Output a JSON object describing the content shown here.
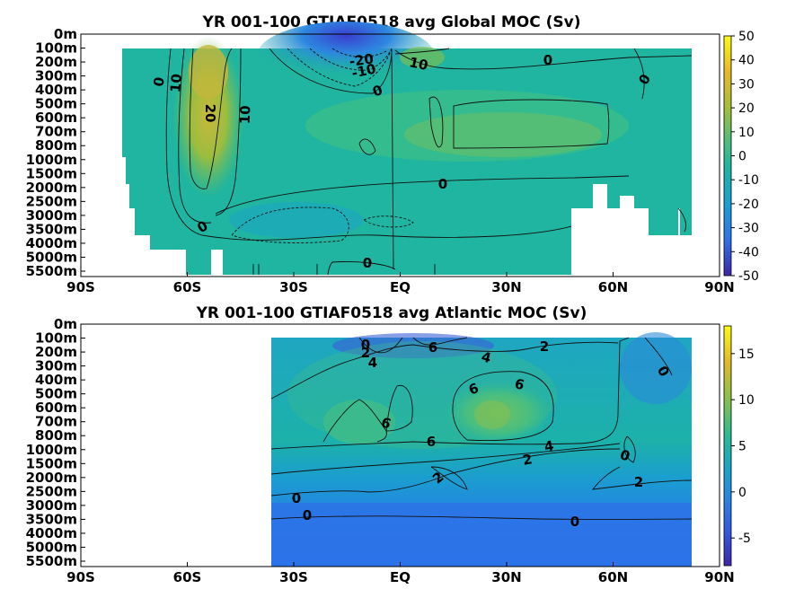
{
  "chart_data": [
    {
      "type": "heatmap",
      "title": "YR 001-100 GTIAF0518 avg  Global MOC (Sv)",
      "x_ticks": [
        "90S",
        "60S",
        "30S",
        "EQ",
        "30N",
        "60N",
        "90N"
      ],
      "y_ticks": [
        "0m",
        "100m",
        "200m",
        "300m",
        "400m",
        "500m",
        "600m",
        "700m",
        "800m",
        "1000m",
        "1500m",
        "2000m",
        "2500m",
        "3000m",
        "3500m",
        "4000m",
        "5000m",
        "5500m"
      ],
      "colorbar_ticks": [
        "50",
        "40",
        "30",
        "20",
        "10",
        "0",
        "-10",
        "-20",
        "-30",
        "-40",
        "-50"
      ],
      "clim": [
        -50,
        50
      ],
      "contour_labels": [
        "0",
        "10",
        "20",
        "10",
        "-20",
        "-10",
        "10",
        "0",
        "0",
        "0",
        "0",
        "0",
        "0"
      ],
      "features": [
        {
          "lat": -50,
          "depth_m": 1000,
          "value": 30
        },
        {
          "lat": -10,
          "depth_m": 100,
          "value": -25
        },
        {
          "lat": 10,
          "depth_m": 200,
          "value": 12
        },
        {
          "lat": 30,
          "depth_m": 800,
          "value": 14
        }
      ]
    },
    {
      "type": "heatmap",
      "title": "YR 001-100 GTIAF0518 avg  Atlantic MOC (Sv)",
      "x_ticks": [
        "90S",
        "60S",
        "30S",
        "EQ",
        "30N",
        "60N",
        "90N"
      ],
      "y_ticks": [
        "0m",
        "100m",
        "200m",
        "300m",
        "400m",
        "500m",
        "600m",
        "700m",
        "800m",
        "1000m",
        "1500m",
        "2000m",
        "2500m",
        "3000m",
        "3500m",
        "4000m",
        "5000m",
        "5500m"
      ],
      "colorbar_ticks": [
        "15",
        "10",
        "5",
        "0",
        "-5"
      ],
      "clim": [
        -8,
        18
      ],
      "contour_labels": [
        "0",
        "2",
        "4",
        "6",
        "4",
        "2",
        "6",
        "6",
        "6",
        "6",
        "4",
        "2",
        "0",
        "2",
        "2",
        "0",
        "0"
      ],
      "features": [
        {
          "lat": 30,
          "depth_m": 700,
          "value": 10
        },
        {
          "lat": -10,
          "depth_m": 700,
          "value": 7
        },
        {
          "lat": 60,
          "depth_m": 3000,
          "value": 1
        }
      ]
    }
  ],
  "colors": {
    "dark": "#3e26a8",
    "mid_low": "#2f88e5",
    "mid": "#1fb4a2",
    "mid_high": "#8cc14a",
    "high": "#f9fb14"
  }
}
